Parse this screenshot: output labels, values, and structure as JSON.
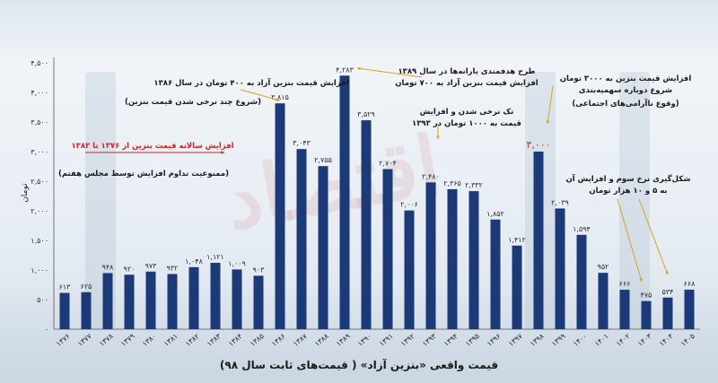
{
  "chart_data": {
    "type": "bar",
    "title": "",
    "xlabel": "قیمت واقعی «بنزین آزاد» ( قیمت‌های ثابت سال ۹۸)",
    "ylabel": "تومان",
    "ylim": [
      0,
      4500
    ],
    "yticks": [
      "۰",
      "۵۰۰",
      "۱,۰۰۰",
      "۱,۵۰۰",
      "۲,۰۰۰",
      "۲,۵۰۰",
      "۳,۰۰۰",
      "۳,۵۰۰",
      "۴,۰۰۰",
      "۴,۵۰۰"
    ],
    "ytick_values": [
      0,
      500,
      1000,
      1500,
      2000,
      2500,
      3000,
      3500,
      4000,
      4500
    ],
    "grid": false,
    "bar_color": "#1c3a78",
    "highlight_color": "#d23434",
    "categories": [
      "۱۳۷۶",
      "۱۳۷۷",
      "۱۳۷۸",
      "۱۳۷۹",
      "۱۳۸۰",
      "۱۳۸۱",
      "۱۳۸۲",
      "۱۳۸۳",
      "۱۳۸۴",
      "۱۳۸۵",
      "۱۳۸۶",
      "۱۳۸۷",
      "۱۳۸۸",
      "۱۳۸۹",
      "۱۳۹۰",
      "۱۳۹۱",
      "۱۳۹۲",
      "۱۳۹۳",
      "۱۳۹۴",
      "۱۳۹۵",
      "۱۳۹۶",
      "۱۳۹۷",
      "۱۳۹۸",
      "۱۳۹۹",
      "۱۴۰۰",
      "۱۴۰۱",
      "۱۴۰۲",
      "۱۴۰۳",
      "۱۴۰۴",
      "۱۴۰۵"
    ],
    "values": [
      613,
      625,
      948,
      920,
      973,
      932,
      1048,
      1121,
      1009,
      903,
      3815,
      3043,
      2755,
      4283,
      3529,
      2704,
      2006,
      2480,
      2365,
      2332,
      1852,
      1412,
      3000,
      2039,
      1594,
      952,
      666,
      475,
      534,
      668
    ],
    "value_labels": [
      "۶۱۳",
      "۶۲۵",
      "۹۴۸",
      "۹۲۰",
      "۹۷۳",
      "۹۳۲",
      "۱,۰۴۸",
      "۱,۱۲۱",
      "۱,۰۰۹",
      "۹۰۳",
      "۳,۸۱۵",
      "۳,۰۴۳",
      "۲,۷۵۵",
      "۴,۲۸۳",
      "۳,۵۲۹",
      "۲,۷۰۴",
      "۲,۰۰۶",
      "۲,۴۸۰",
      "۲,۳۶۵",
      "۲,۳۳۲",
      "۱,۸۵۲",
      "۱,۴۱۲",
      "۳,۰۰۰",
      "۲,۰۳۹",
      "۱,۵۹۴",
      "۹۵۲",
      "۶۶۶",
      "۴۷۵",
      "۵۳۴",
      "۶۶۸"
    ],
    "highlight_index": 22,
    "annotations": [
      {
        "lines": [
          "افزایش قیمت بنزین آزاد به ۴۰۰ تومان در سال ۱۳۸۶"
        ],
        "color": "#1a1a1a"
      },
      {
        "lines": [
          "(شروع چند نرخی شدن قیمت بنزین)"
        ],
        "color": "#1a1a1a"
      },
      {
        "lines": [
          "افزایش سالانه قیمت بنزین از ۱۳۷۶ تا ۱۳۸۳"
        ],
        "color": "#c62828"
      },
      {
        "lines": [
          "(ممنوعیت تداوم افزایش توسط مجلس هفتم)"
        ],
        "color": "#1a1a1a"
      },
      {
        "lines": [
          "طرح هدفمندی یارانه‌ها در سال ۱۳۸۹",
          "افزایش قیمت بنزین آزاد به ۷۰۰ تومان"
        ],
        "color": "#1a1a1a"
      },
      {
        "lines": [
          "تک نرخی شدن و افزایش",
          "قیمت به ۱۰۰۰ تومان در ۱۳۹۳"
        ],
        "color": "#1a1a1a"
      },
      {
        "lines": [
          "افزایش قیمت بنزین به ۳۰۰۰ تومان",
          "شروع دوباره سهمیه‌بندی"
        ],
        "color": "#1a1a1a"
      },
      {
        "lines": [
          "(وقوع ناآرامی‌های اجتماعی)"
        ],
        "color": "#1a1a1a"
      },
      {
        "lines": [
          "شکل‌گیری نرخ سوم و افزایش آن",
          "به ۵ و ۱۰ هزار تومان"
        ],
        "color": "#1a1a1a"
      }
    ]
  }
}
